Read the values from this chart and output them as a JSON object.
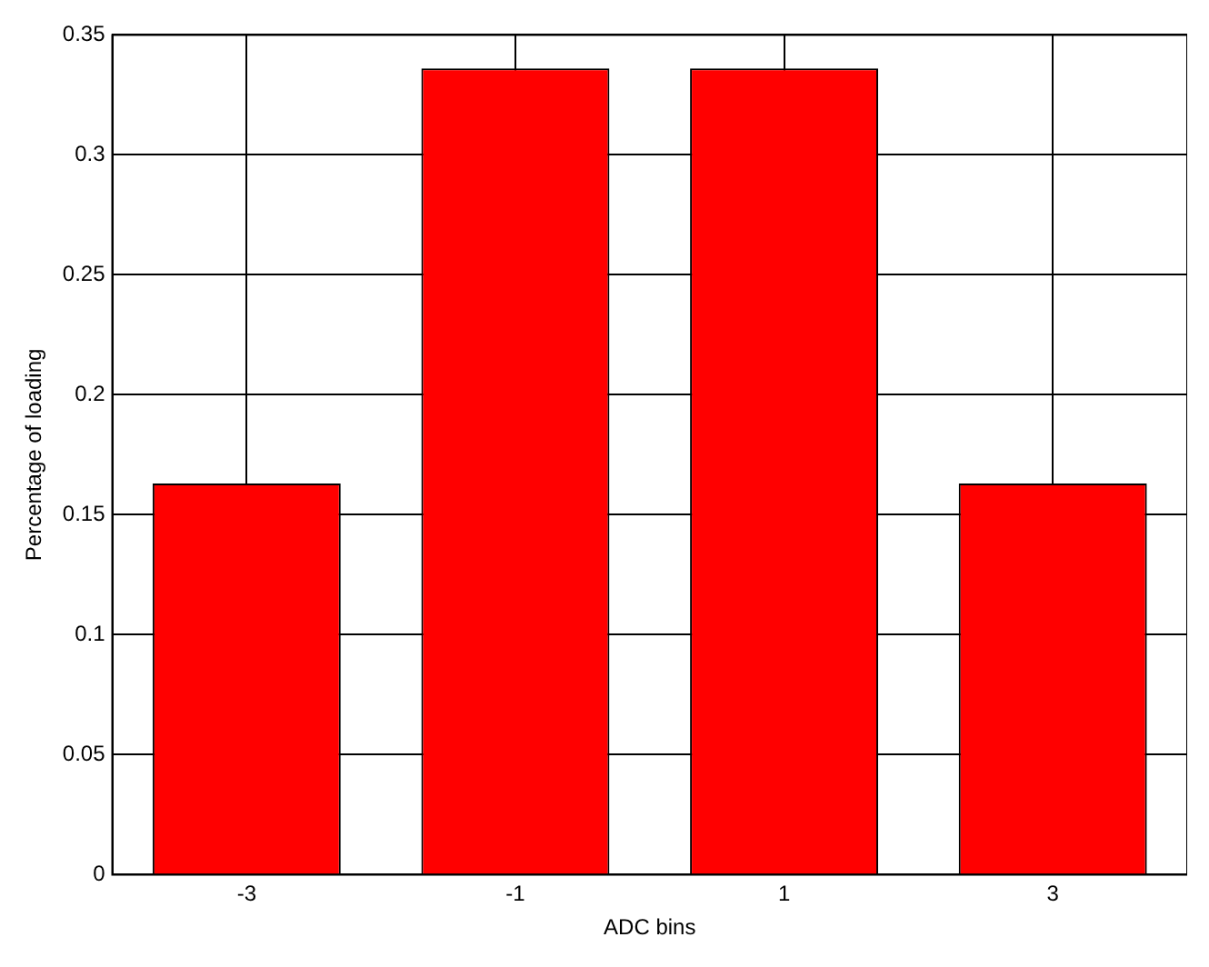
{
  "chart_data": {
    "type": "bar",
    "xlabel": "ADC bins",
    "ylabel": "Percentage of loading",
    "categories": [
      "-3",
      "-1",
      "1",
      "3"
    ],
    "values": [
      0.163,
      0.336,
      0.336,
      0.163
    ],
    "color": "#ff0000",
    "ylim": [
      0,
      0.35
    ],
    "yticks": [
      0,
      0.05,
      0.1,
      0.15,
      0.2,
      0.25,
      0.3,
      0.35
    ],
    "grid": true,
    "legend": false
  }
}
